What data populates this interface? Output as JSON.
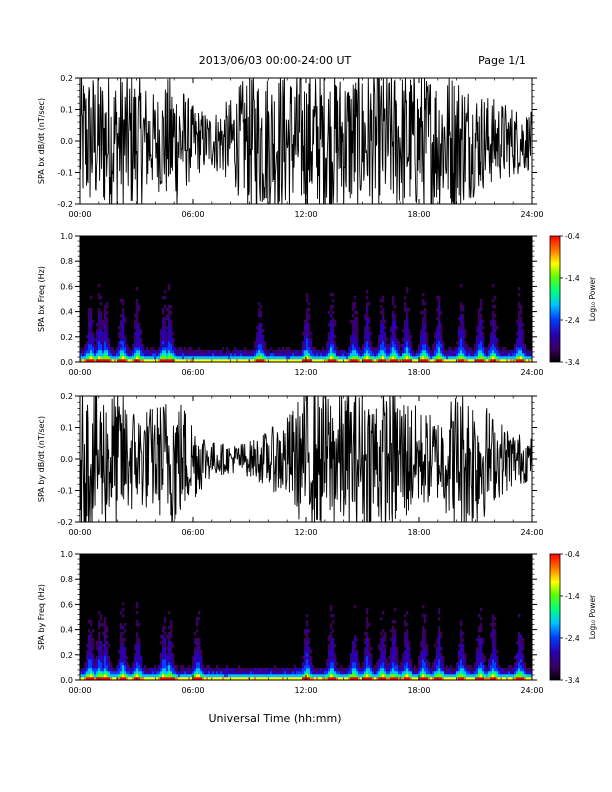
{
  "header": {
    "title": "2013/06/03  00:00-24:00 UT",
    "page": "Page 1/1"
  },
  "xlabel": "Universal Time (hh:mm)",
  "colorbar": {
    "label": "Log₁₀ Power",
    "ticks": [
      "-0.4",
      "-1.4",
      "-2.4",
      "-3.4"
    ],
    "range": [
      -3.4,
      -0.4
    ],
    "colormap": [
      "#000000",
      "#3a0060",
      "#2a00b0",
      "#0040ff",
      "#00c0ff",
      "#00ff80",
      "#60ff00",
      "#ffff00",
      "#ff8000",
      "#ff0000"
    ]
  },
  "chart_data": [
    {
      "type": "line",
      "ylabel": "SPA bx dB/dt (nT/sec)",
      "xlim": [
        "00:00",
        "24:00"
      ],
      "ylim": [
        -0.2,
        0.2
      ],
      "xticks": [
        "00:00",
        "06:00",
        "12:00",
        "18:00",
        "24:00"
      ],
      "yticks": [
        "0.2",
        "0.1",
        "0.0",
        "-0.1",
        "-0.2"
      ],
      "series": [
        {
          "times_hr": [
            0,
            1,
            2,
            3,
            4,
            5,
            6,
            7,
            8,
            9,
            10,
            11,
            12,
            13,
            14,
            15,
            16,
            17,
            18,
            19,
            20,
            21,
            22,
            23,
            24
          ],
          "envelope_abs": [
            0.2,
            0.2,
            0.2,
            0.2,
            0.13,
            0.2,
            0.1,
            0.08,
            0.12,
            0.2,
            0.2,
            0.2,
            0.2,
            0.2,
            0.2,
            0.2,
            0.2,
            0.2,
            0.2,
            0.2,
            0.2,
            0.15,
            0.12,
            0.1,
            0.08
          ]
        }
      ]
    },
    {
      "type": "heatmap",
      "ylabel": "SPA bx Freq (Hz)",
      "xlim": [
        "00:00",
        "24:00"
      ],
      "ylim": [
        0.0,
        1.0
      ],
      "xticks": [
        "00:00",
        "06:00",
        "12:00",
        "18:00",
        "24:00"
      ],
      "yticks": [
        "1.0",
        "0.8",
        "0.6",
        "0.4",
        "0.2",
        "0.0"
      ],
      "bursts_hr": [
        0.5,
        1.0,
        1.3,
        2.2,
        3.0,
        4.4,
        4.7,
        9.5,
        12.0,
        13.3,
        14.5,
        15.2,
        16.0,
        16.6,
        17.3,
        18.2,
        19.0,
        20.2,
        21.2,
        21.9,
        23.3
      ]
    },
    {
      "type": "line",
      "ylabel": "SPA by dB/dt (nT/sec)",
      "xlim": [
        "00:00",
        "24:00"
      ],
      "ylim": [
        -0.2,
        0.2
      ],
      "xticks": [
        "00:00",
        "06:00",
        "12:00",
        "18:00",
        "24:00"
      ],
      "yticks": [
        "0.2",
        "0.1",
        "0.0",
        "-0.1",
        "-0.2"
      ],
      "series": [
        {
          "times_hr": [
            0,
            1,
            2,
            3,
            4,
            5,
            6,
            7,
            8,
            9,
            10,
            11,
            12,
            13,
            14,
            15,
            16,
            17,
            18,
            19,
            20,
            21,
            22,
            23,
            24
          ],
          "envelope_abs": [
            0.2,
            0.2,
            0.2,
            0.14,
            0.15,
            0.2,
            0.12,
            0.05,
            0.04,
            0.05,
            0.08,
            0.12,
            0.2,
            0.2,
            0.2,
            0.2,
            0.2,
            0.2,
            0.14,
            0.12,
            0.2,
            0.2,
            0.12,
            0.08,
            0.06
          ]
        }
      ]
    },
    {
      "type": "heatmap",
      "ylabel": "SPA by Freq (Hz)",
      "xlim": [
        "00:00",
        "24:00"
      ],
      "ylim": [
        0.0,
        1.0
      ],
      "xticks": [
        "00:00",
        "06:00",
        "12:00",
        "18:00",
        "24:00"
      ],
      "yticks": [
        "1.0",
        "0.8",
        "0.6",
        "0.4",
        "0.2",
        "0.0"
      ],
      "bursts_hr": [
        0.5,
        1.0,
        1.3,
        2.2,
        3.0,
        4.4,
        4.7,
        6.2,
        12.0,
        13.3,
        14.5,
        15.2,
        16.0,
        16.6,
        17.3,
        18.2,
        19.0,
        20.2,
        21.2,
        21.9,
        23.3
      ]
    }
  ]
}
